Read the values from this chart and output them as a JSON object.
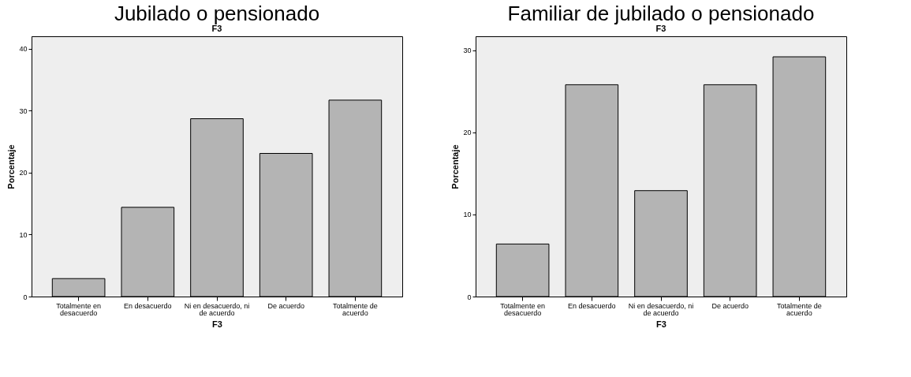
{
  "chart_data": [
    {
      "type": "bar",
      "title": "Jubilado o pensionado",
      "subtitle": "F3",
      "xlabel": "F3",
      "ylabel": "Porcentaje",
      "categories": [
        "Totalmente en desacuerdo",
        "En desacuerdo",
        "Ni en desacuerdo, ni de acuerdo",
        "De acuerdo",
        "Totalmente de acuerdo"
      ],
      "values": [
        2.9,
        14.4,
        28.7,
        23.1,
        31.7
      ],
      "color": "#b4b4b4",
      "ylim": [
        0,
        42
      ],
      "yticks": [
        0,
        10,
        20,
        30,
        40
      ],
      "grid": false
    },
    {
      "type": "bar",
      "title": "Familiar de jubilado o pensionado",
      "subtitle": "F3",
      "xlabel": "F3",
      "ylabel": "Porcentaje",
      "categories": [
        "Totalmente en desacuerdo",
        "En desacuerdo",
        "Ni en desacuerdo, ni de acuerdo",
        "De acuerdo",
        "Totalmente de acuerdo"
      ],
      "values": [
        6.4,
        25.8,
        12.9,
        25.8,
        29.2
      ],
      "color": "#b4b4b4",
      "ylim": [
        0,
        31.7
      ],
      "yticks": [
        0,
        10,
        20,
        30
      ],
      "grid": false
    }
  ]
}
